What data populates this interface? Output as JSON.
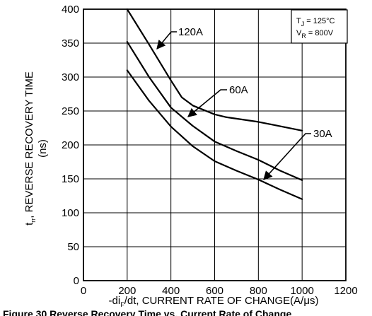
{
  "chart_data": {
    "type": "line",
    "xlabel": {
      "prefix": "-di",
      "sub": "F",
      "rest": "/dt, CURRENT RATE OF CHANGE(A/μs)"
    },
    "ylabel": {
      "line1_prefix": "t",
      "line1_sub": "rr",
      "line1_rest": ", REVERSE RECOVERY TIME",
      "line2": "(ns)"
    },
    "xlim": [
      0,
      1200
    ],
    "ylim": [
      0,
      400
    ],
    "xticks": [
      "0",
      "200",
      "400",
      "600",
      "800",
      "1000",
      "1200"
    ],
    "yticks": [
      "0",
      "50",
      "100",
      "150",
      "200",
      "250",
      "300",
      "350",
      "400"
    ],
    "grid": true,
    "series": [
      {
        "name": "120A",
        "x": [
          200,
          300,
          400,
          450,
          500,
          600,
          650,
          800,
          1000
        ],
        "y": [
          400,
          348,
          295,
          270,
          258,
          245,
          241,
          234,
          221
        ]
      },
      {
        "name": "60A",
        "x": [
          200,
          300,
          400,
          500,
          600,
          700,
          800,
          900,
          1000
        ],
        "y": [
          352,
          300,
          255,
          228,
          205,
          191,
          178,
          162,
          148
        ]
      },
      {
        "name": "30A",
        "x": [
          200,
          300,
          400,
          500,
          600,
          700,
          800,
          900,
          1000
        ],
        "y": [
          310,
          265,
          227,
          198,
          176,
          162,
          149,
          134,
          120
        ]
      }
    ],
    "conditions": {
      "tj_prefix": "T",
      "tj_sub": "J",
      "tj_rest": " = 125°C",
      "vr_prefix": "V",
      "vr_sub": "R",
      "vr_rest": " = 800V"
    },
    "caption": "Figure 30 Reverse Recovery Time vs. Current Rate of Change"
  }
}
